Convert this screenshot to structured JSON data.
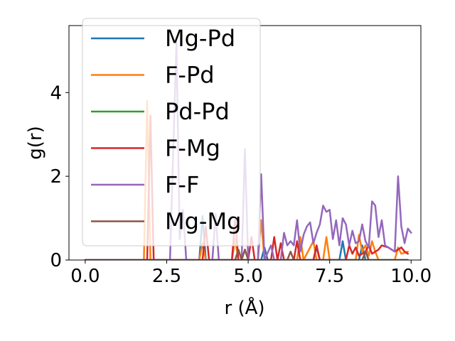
{
  "chart_data": {
    "type": "line",
    "xlabel": "r (Å)",
    "ylabel": "g(r)",
    "xlim": [
      -0.5,
      10.3
    ],
    "ylim": [
      0,
      5.6
    ],
    "x_ticks": [
      0.0,
      2.5,
      5.0,
      7.5,
      10.0
    ],
    "x_tick_labels": [
      "0.0",
      "2.5",
      "5.0",
      "7.5",
      "10.0"
    ],
    "y_ticks": [
      0,
      2,
      4
    ],
    "y_tick_labels": [
      "0",
      "2",
      "4"
    ],
    "grid": false,
    "legend_position": "upper-left",
    "series": [
      {
        "name": "Mg-Pd",
        "color": "#1f77b4",
        "points": [
          [
            0,
            0
          ],
          [
            3.5,
            0
          ],
          [
            3.6,
            1.05
          ],
          [
            3.7,
            0
          ],
          [
            5.4,
            0
          ],
          [
            5.5,
            0.3
          ],
          [
            5.6,
            0
          ],
          [
            7.0,
            0
          ],
          [
            7.1,
            0.3
          ],
          [
            7.2,
            0
          ],
          [
            7.8,
            0
          ],
          [
            7.9,
            0.45
          ],
          [
            8.0,
            0
          ],
          [
            8.4,
            0
          ],
          [
            8.5,
            0.35
          ],
          [
            8.6,
            0
          ],
          [
            9.9,
            0
          ]
        ]
      },
      {
        "name": "F-Pd",
        "color": "#ff7f0e",
        "points": [
          [
            0,
            0
          ],
          [
            1.8,
            0
          ],
          [
            1.9,
            3.8
          ],
          [
            2.0,
            0
          ],
          [
            3.5,
            0
          ],
          [
            3.6,
            0.4
          ],
          [
            3.7,
            0
          ],
          [
            4.5,
            0
          ],
          [
            4.6,
            0.5
          ],
          [
            4.7,
            0
          ],
          [
            5.3,
            0
          ],
          [
            5.4,
            0.95
          ],
          [
            5.5,
            0
          ],
          [
            6.5,
            0
          ],
          [
            6.6,
            0.55
          ],
          [
            6.7,
            0
          ],
          [
            7.0,
            0.45
          ],
          [
            7.1,
            0
          ],
          [
            7.3,
            0
          ],
          [
            7.4,
            0.55
          ],
          [
            7.5,
            0
          ],
          [
            8.3,
            0
          ],
          [
            8.4,
            0.6
          ],
          [
            8.5,
            0.2
          ],
          [
            8.6,
            0.35
          ],
          [
            8.7,
            0.1
          ],
          [
            8.8,
            0.45
          ],
          [
            8.9,
            0.2
          ],
          [
            9.0,
            0
          ],
          [
            9.5,
            0
          ],
          [
            9.6,
            0.3
          ],
          [
            9.7,
            0.15
          ],
          [
            9.9,
            0.2
          ]
        ]
      },
      {
        "name": "Pd-Pd",
        "color": "#2ca02c",
        "points": [
          [
            0,
            0
          ],
          [
            9.9,
            0
          ]
        ]
      },
      {
        "name": "F-Mg",
        "color": "#d62728",
        "points": [
          [
            0,
            0
          ],
          [
            1.9,
            0
          ],
          [
            2.0,
            3.45
          ],
          [
            2.1,
            0
          ],
          [
            3.6,
            0
          ],
          [
            3.7,
            0.8
          ],
          [
            3.8,
            0
          ],
          [
            4.5,
            0
          ],
          [
            4.6,
            1.0
          ],
          [
            4.7,
            0
          ],
          [
            5.0,
            0
          ],
          [
            5.1,
            0.55
          ],
          [
            5.2,
            0
          ],
          [
            5.7,
            0
          ],
          [
            5.8,
            0.55
          ],
          [
            5.9,
            0
          ],
          [
            6.0,
            0.4
          ],
          [
            6.1,
            0
          ],
          [
            6.4,
            0
          ],
          [
            6.5,
            0.45
          ],
          [
            6.6,
            0
          ],
          [
            7.0,
            0
          ],
          [
            7.1,
            0.35
          ],
          [
            7.2,
            0
          ],
          [
            8.0,
            0
          ],
          [
            8.1,
            0.35
          ],
          [
            8.2,
            0.15
          ],
          [
            8.3,
            0.3
          ],
          [
            8.4,
            0.1
          ],
          [
            8.6,
            0.2
          ],
          [
            8.7,
            0.35
          ],
          [
            8.8,
            0.15
          ],
          [
            9.0,
            0.25
          ],
          [
            9.1,
            0.35
          ],
          [
            9.3,
            0.3
          ],
          [
            9.5,
            0.2
          ],
          [
            9.6,
            0.25
          ],
          [
            9.7,
            0.3
          ],
          [
            9.8,
            0.2
          ],
          [
            9.9,
            0.15
          ]
        ]
      },
      {
        "name": "F-F",
        "color": "#9467bd",
        "points": [
          [
            0,
            0
          ],
          [
            2.6,
            0
          ],
          [
            2.8,
            5.2
          ],
          [
            2.9,
            0.5
          ],
          [
            3.0,
            1.2
          ],
          [
            3.1,
            0
          ],
          [
            3.9,
            0
          ],
          [
            4.0,
            1.1
          ],
          [
            4.1,
            0
          ],
          [
            4.8,
            0
          ],
          [
            4.9,
            2.65
          ],
          [
            5.0,
            0
          ],
          [
            5.3,
            0
          ],
          [
            5.4,
            2.05
          ],
          [
            5.5,
            0
          ],
          [
            5.7,
            0.35
          ],
          [
            5.8,
            0
          ],
          [
            6.0,
            0
          ],
          [
            6.1,
            0.65
          ],
          [
            6.2,
            0.35
          ],
          [
            6.3,
            0.45
          ],
          [
            6.4,
            0.35
          ],
          [
            6.5,
            0.95
          ],
          [
            6.6,
            0.2
          ],
          [
            6.7,
            0.6
          ],
          [
            6.8,
            0.8
          ],
          [
            6.9,
            0.9
          ],
          [
            7.0,
            0.4
          ],
          [
            7.1,
            0.65
          ],
          [
            7.2,
            0.85
          ],
          [
            7.3,
            1.3
          ],
          [
            7.4,
            1.15
          ],
          [
            7.5,
            1.2
          ],
          [
            7.6,
            0.5
          ],
          [
            7.7,
            0.95
          ],
          [
            7.8,
            0.35
          ],
          [
            7.9,
            1.0
          ],
          [
            8.0,
            0.85
          ],
          [
            8.1,
            0.35
          ],
          [
            8.2,
            0.7
          ],
          [
            8.3,
            0.4
          ],
          [
            8.4,
            0.45
          ],
          [
            8.5,
            0.85
          ],
          [
            8.6,
            0.45
          ],
          [
            8.7,
            0.3
          ],
          [
            8.8,
            1.4
          ],
          [
            8.9,
            1.3
          ],
          [
            9.0,
            0.55
          ],
          [
            9.1,
            0.95
          ],
          [
            9.2,
            0.35
          ],
          [
            9.3,
            0.3
          ],
          [
            9.4,
            0.25
          ],
          [
            9.5,
            0.2
          ],
          [
            9.6,
            2.0
          ],
          [
            9.7,
            0.8
          ],
          [
            9.8,
            0.4
          ],
          [
            9.9,
            0.75
          ],
          [
            10.0,
            0.65
          ]
        ]
      },
      {
        "name": "Mg-Mg",
        "color": "#8c564b",
        "points": [
          [
            0,
            0
          ],
          [
            4.6,
            0
          ],
          [
            4.7,
            0.25
          ],
          [
            4.8,
            0
          ],
          [
            4.9,
            0.25
          ],
          [
            5.0,
            0
          ],
          [
            6.2,
            0
          ],
          [
            6.3,
            0.2
          ],
          [
            6.4,
            0
          ],
          [
            8.5,
            0
          ],
          [
            8.6,
            0.2
          ],
          [
            8.7,
            0
          ],
          [
            9.9,
            0
          ]
        ]
      }
    ]
  }
}
